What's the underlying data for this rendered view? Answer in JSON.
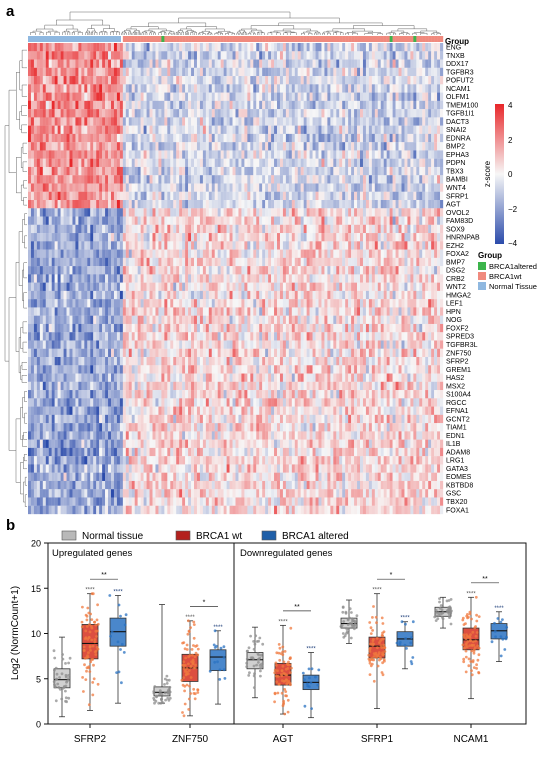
{
  "panel_a": {
    "label": "a",
    "group_header": "Group",
    "colorbar_title": "z-score",
    "colorbar_ticks": [
      "4",
      "2",
      "0",
      "−2",
      "−4"
    ],
    "legend_title": "Group",
    "legend": [
      {
        "label": "BRCA1altered",
        "color": "#3cb44b"
      },
      {
        "label": "BRCA1wt",
        "color": "#f08a7e"
      },
      {
        "label": "Normal Tissue",
        "color": "#8fb8e0"
      }
    ],
    "colors": {
      "high": "#e8272a",
      "mid": "#f7f7f7",
      "low": "#2b4bab"
    }
  },
  "panel_b": {
    "label": "b",
    "legend": [
      {
        "label": "Normal tissue",
        "color": "#b9b9b9"
      },
      {
        "label": "BRCA1 wt",
        "color": "#b3211e"
      },
      {
        "label": "BRCA1 altered",
        "color": "#1f5fa8"
      }
    ],
    "section_labels": [
      "Upregulated genes",
      "Downregulated genes"
    ]
  },
  "chart_data": [
    {
      "type": "heatmap",
      "title": "",
      "upregulated_in_normal_rows": [
        "ENG",
        "TNXB",
        "DDX17",
        "TGFBR3",
        "POFUT2",
        "NCAM1",
        "OLFM1",
        "TMEM100",
        "TGFB1I1",
        "DACT3",
        "SNAI2",
        "EDNRA",
        "BMP2",
        "EPHA3",
        "PDPN",
        "TBX3",
        "BAMBI",
        "WNT4",
        "SFRP1",
        "AGT"
      ],
      "downregulated_in_normal_rows": [
        "OVOL2",
        "FAM83D",
        "SOX9",
        "HNRNPAB",
        "EZH2",
        "FOXA2",
        "BMP7",
        "DSG2",
        "CRB2",
        "WNT2",
        "HMGA2",
        "LEF1",
        "HPN",
        "NOG",
        "FOXF2",
        "SPRED3",
        "TGFBR3L",
        "ZNF750",
        "SFRP2",
        "GREM1",
        "HAS2",
        "MSX2",
        "S100A4",
        "RGCC",
        "EFNA1",
        "GCNT2",
        "TIAM1",
        "EDN1",
        "IL1B",
        "ADAM8",
        "LRG1",
        "GATA3",
        "EOMES",
        "KBTBD8",
        "GSC",
        "TBX20",
        "FOXA1"
      ],
      "column_groups": [
        "Normal Tissue",
        "BRCA1wt",
        "BRCA1altered"
      ],
      "color_scale": {
        "label": "z-score",
        "min": -4,
        "max": 4
      }
    },
    {
      "type": "box",
      "ylabel": "Log2 (NormCount+1)",
      "ylim": [
        0,
        20
      ],
      "yticks": [
        0,
        5,
        10,
        15,
        20
      ],
      "categories": [
        "SFRP2",
        "ZNF750",
        "AGT",
        "SFRP1",
        "NCAM1"
      ],
      "series": [
        {
          "name": "Normal tissue",
          "boxes": [
            {
              "min": 0.8,
              "q1": 4.0,
              "median": 4.9,
              "q3": 6.1,
              "max": 9.6
            },
            {
              "min": 2.3,
              "q1": 3.1,
              "median": 3.5,
              "q3": 4.1,
              "max": 13.2
            },
            {
              "min": 2.9,
              "q1": 6.1,
              "median": 7.1,
              "q3": 7.9,
              "max": 10.7
            },
            {
              "min": 8.9,
              "q1": 10.6,
              "median": 11.1,
              "q3": 11.7,
              "max": 13.7
            },
            {
              "min": 10.6,
              "q1": 11.9,
              "median": 12.4,
              "q3": 12.9,
              "max": 14.0
            }
          ]
        },
        {
          "name": "BRCA1 wt",
          "boxes": [
            {
              "min": 1.5,
              "q1": 7.2,
              "median": 8.9,
              "q3": 11.0,
              "max": 14.4
            },
            {
              "min": 0.9,
              "q1": 4.7,
              "median": 6.2,
              "q3": 7.7,
              "max": 11.4
            },
            {
              "min": 1.1,
              "q1": 4.3,
              "median": 5.4,
              "q3": 6.7,
              "max": 10.9
            },
            {
              "min": 1.7,
              "q1": 7.3,
              "median": 8.6,
              "q3": 9.6,
              "max": 14.4
            },
            {
              "min": 2.8,
              "q1": 8.2,
              "median": 9.3,
              "q3": 10.6,
              "max": 14.0
            }
          ]
        },
        {
          "name": "BRCA1 altered",
          "boxes": [
            {
              "min": 2.3,
              "q1": 8.6,
              "median": 10.2,
              "q3": 11.7,
              "max": 14.2
            },
            {
              "min": 2.2,
              "q1": 5.9,
              "median": 7.4,
              "q3": 8.2,
              "max": 10.3
            },
            {
              "min": 0.7,
              "q1": 3.8,
              "median": 4.6,
              "q3": 5.4,
              "max": 7.9
            },
            {
              "min": 6.1,
              "q1": 8.6,
              "median": 9.4,
              "q3": 10.2,
              "max": 11.3
            },
            {
              "min": 6.9,
              "q1": 9.4,
              "median": 10.3,
              "q3": 11.1,
              "max": 12.4
            }
          ]
        }
      ],
      "significance": {
        "vs_normal": [
          [
            "****",
            "****"
          ],
          [
            "****",
            "****"
          ],
          [
            "****",
            "****"
          ],
          [
            "****",
            "****"
          ],
          [
            "****",
            "****"
          ]
        ],
        "wt_vs_altered": [
          "**",
          "*",
          "**",
          "*",
          "**"
        ]
      }
    }
  ]
}
